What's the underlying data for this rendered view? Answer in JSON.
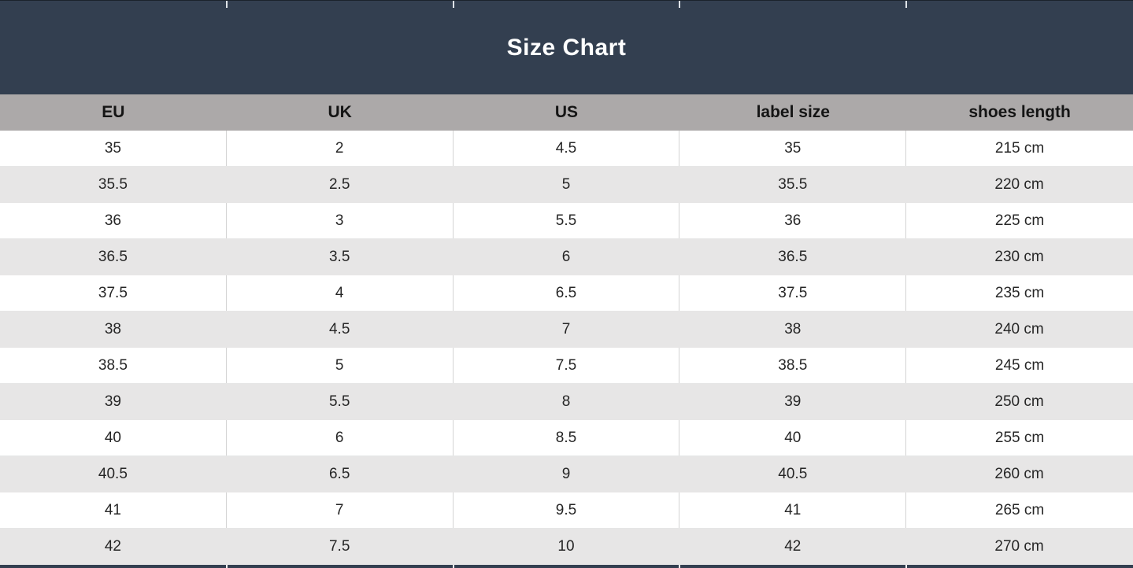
{
  "title": "Size Chart",
  "colors": {
    "band": "#333F50",
    "header_bg": "#ACA9A9",
    "row_alt": "#E7E6E6",
    "row_white": "#FFFFFF",
    "border": "#D4D4D4",
    "title_text": "#FFFFFF",
    "header_text": "#141414"
  },
  "chart_data": {
    "type": "table",
    "title": "Size Chart",
    "columns": [
      "EU",
      "UK",
      "US",
      "label size",
      "shoes length"
    ],
    "rows": [
      [
        "35",
        "2",
        "4.5",
        "35",
        "215 cm"
      ],
      [
        "35.5",
        "2.5",
        "5",
        "35.5",
        "220 cm"
      ],
      [
        "36",
        "3",
        "5.5",
        "36",
        "225 cm"
      ],
      [
        "36.5",
        "3.5",
        "6",
        "36.5",
        "230 cm"
      ],
      [
        "37.5",
        "4",
        "6.5",
        "37.5",
        "235 cm"
      ],
      [
        "38",
        "4.5",
        "7",
        "38",
        "240 cm"
      ],
      [
        "38.5",
        "5",
        "7.5",
        "38.5",
        "245 cm"
      ],
      [
        "39",
        "5.5",
        "8",
        "39",
        "250 cm"
      ],
      [
        "40",
        "6",
        "8.5",
        "40",
        "255 cm"
      ],
      [
        "40.5",
        "6.5",
        "9",
        "40.5",
        "260 cm"
      ],
      [
        "41",
        "7",
        "9.5",
        "41",
        "265 cm"
      ],
      [
        "42",
        "7.5",
        "10",
        "42",
        "270 cm"
      ]
    ],
    "layout": {
      "columns_equal_width": true,
      "row_striping": "white/light-gray alternating",
      "header_position": "top"
    }
  }
}
